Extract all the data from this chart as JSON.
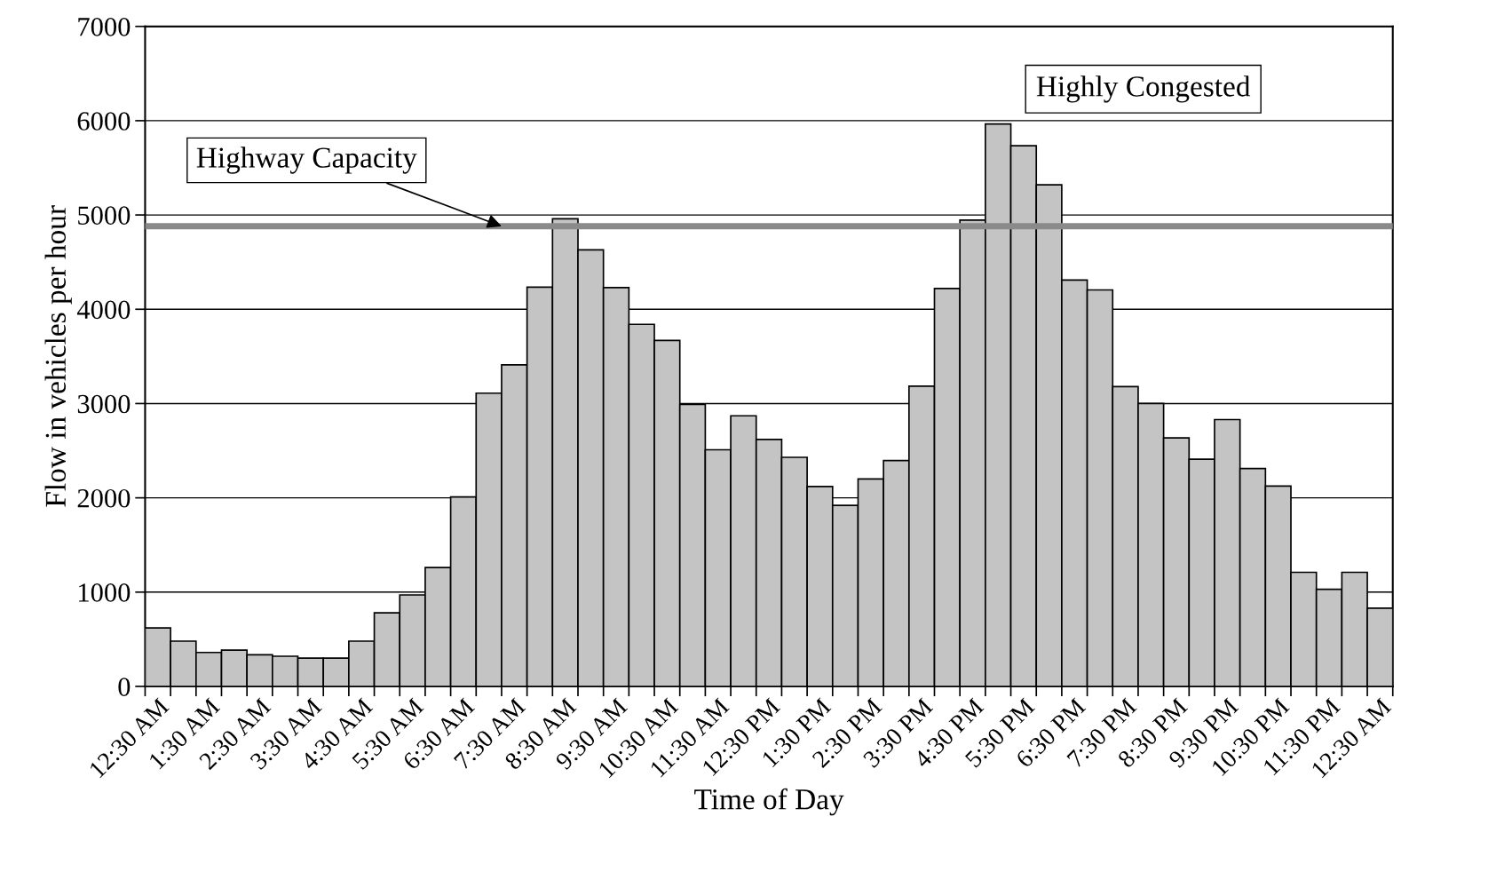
{
  "chart_data": {
    "type": "bar",
    "xlabel": "Time of Day",
    "ylabel": "Flow in vehicles per hour",
    "categories": [
      "12:30 AM",
      null,
      "1:30 AM",
      null,
      "2:30 AM",
      null,
      "3:30 AM",
      null,
      "4:30 AM",
      null,
      "5:30 AM",
      null,
      "6:30 AM",
      null,
      "7:30 AM",
      null,
      "8:30 AM",
      null,
      "9:30 AM",
      null,
      "10:30 AM",
      null,
      "11:30 AM",
      null,
      "12:30 PM",
      null,
      "1:30 PM",
      null,
      "2:30 PM",
      null,
      "3:30 PM",
      null,
      "4:30 PM",
      null,
      "5:30 PM",
      null,
      "6:30 PM",
      null,
      "7:30 PM",
      null,
      "8:30 PM",
      null,
      "9:30 PM",
      null,
      "10:30 PM",
      null,
      "11:30 PM",
      null,
      "12:30 AM"
    ],
    "values": [
      620,
      480,
      360,
      385,
      335,
      320,
      300,
      300,
      480,
      780,
      970,
      1260,
      2010,
      3110,
      3410,
      4235,
      4960,
      4630,
      4230,
      3840,
      3670,
      2990,
      2510,
      2870,
      2620,
      2430,
      2120,
      1920,
      2200,
      2395,
      3185,
      4220,
      4945,
      5965,
      5735,
      5320,
      4310,
      4205,
      3180,
      3000,
      2635,
      2410,
      2830,
      2310,
      2125,
      1210,
      1030,
      1210,
      830
    ],
    "color": "#c4c4c4",
    "ylim": [
      0,
      7000
    ],
    "yticks": [
      0,
      1000,
      2000,
      3000,
      4000,
      5000,
      6000,
      7000
    ],
    "grid": "y",
    "ref_lines": [
      {
        "axis": "y",
        "value": 4880,
        "label": "Highway Capacity",
        "color": "#8a8a8a"
      }
    ],
    "annotations": [
      "Highly Congested"
    ]
  }
}
